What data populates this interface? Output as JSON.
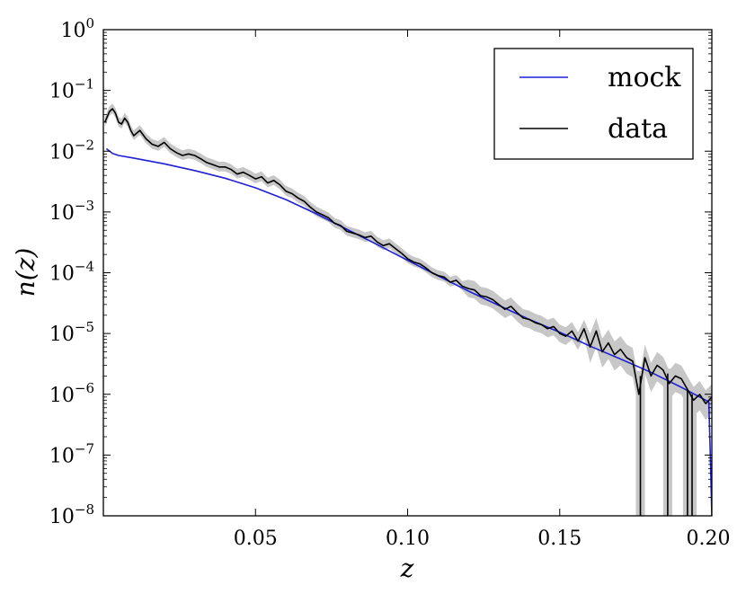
{
  "chart_data": {
    "type": "line",
    "title": "",
    "xlabel": "z",
    "ylabel": "n(z)",
    "xlim": [
      0.0,
      0.2
    ],
    "ylim": [
      1e-08,
      1
    ],
    "yscale": "log",
    "grid": false,
    "legend_position": "top-right",
    "x_ticks": [
      {
        "value": 0.05,
        "label": "0.05"
      },
      {
        "value": 0.1,
        "label": "0.10"
      },
      {
        "value": 0.15,
        "label": "0.15"
      },
      {
        "value": 0.2,
        "label": "0.20"
      }
    ],
    "y_ticks": [
      {
        "exp": 0,
        "base": "10",
        "sup": "0"
      },
      {
        "exp": -1,
        "base": "10",
        "sup": "−1"
      },
      {
        "exp": -2,
        "base": "10",
        "sup": "−2"
      },
      {
        "exp": -3,
        "base": "10",
        "sup": "−3"
      },
      {
        "exp": -4,
        "base": "10",
        "sup": "−4"
      },
      {
        "exp": -5,
        "base": "10",
        "sup": "−5"
      },
      {
        "exp": -6,
        "base": "10",
        "sup": "−6"
      },
      {
        "exp": -7,
        "base": "10",
        "sup": "−7"
      },
      {
        "exp": -8,
        "base": "10",
        "sup": "−8"
      }
    ],
    "series": [
      {
        "name": "mock",
        "color": "#1f1fd6",
        "x": [
          0.001,
          0.003,
          0.005,
          0.01,
          0.02,
          0.03,
          0.04,
          0.05,
          0.06,
          0.07,
          0.08,
          0.09,
          0.1,
          0.11,
          0.12,
          0.13,
          0.14,
          0.15,
          0.16,
          0.17,
          0.18,
          0.19,
          0.199,
          0.1995,
          0.2
        ],
        "y": [
          0.011,
          0.0092,
          0.0085,
          0.0077,
          0.0062,
          0.0048,
          0.0036,
          0.0025,
          0.0016,
          0.00093,
          0.00052,
          0.00029,
          0.00016,
          8.9e-05,
          5e-05,
          2.9e-05,
          1.7e-05,
          1.05e-05,
          6.2e-06,
          3.8e-06,
          2.3e-06,
          1.3e-06,
          7.5e-07,
          1e-07,
          1e-08
        ]
      },
      {
        "name": "data",
        "color": "#000000",
        "band_color": "#c7c7c7",
        "x": [
          0.0005,
          0.002,
          0.003,
          0.004,
          0.005,
          0.006,
          0.007,
          0.008,
          0.009,
          0.01,
          0.012,
          0.014,
          0.016,
          0.018,
          0.02,
          0.022,
          0.024,
          0.026,
          0.028,
          0.03,
          0.032,
          0.034,
          0.036,
          0.038,
          0.04,
          0.042,
          0.044,
          0.046,
          0.048,
          0.05,
          0.052,
          0.054,
          0.056,
          0.058,
          0.06,
          0.062,
          0.064,
          0.066,
          0.068,
          0.07,
          0.072,
          0.074,
          0.076,
          0.078,
          0.08,
          0.082,
          0.084,
          0.086,
          0.088,
          0.09,
          0.092,
          0.094,
          0.096,
          0.098,
          0.1,
          0.102,
          0.104,
          0.106,
          0.108,
          0.11,
          0.112,
          0.114,
          0.116,
          0.118,
          0.12,
          0.122,
          0.124,
          0.126,
          0.128,
          0.13,
          0.132,
          0.134,
          0.136,
          0.138,
          0.14,
          0.142,
          0.144,
          0.146,
          0.148,
          0.15,
          0.152,
          0.154,
          0.156,
          0.158,
          0.16,
          0.162,
          0.164,
          0.166,
          0.168,
          0.17,
          0.172,
          0.174,
          0.176,
          0.178,
          0.18,
          0.182,
          0.184,
          0.186,
          0.188,
          0.19,
          0.192,
          0.194,
          0.196,
          0.198,
          0.2
        ],
        "y": [
          0.03,
          0.045,
          0.05,
          0.042,
          0.03,
          0.028,
          0.035,
          0.03,
          0.022,
          0.018,
          0.022,
          0.016,
          0.013,
          0.012,
          0.014,
          0.011,
          0.0095,
          0.0085,
          0.009,
          0.0085,
          0.0075,
          0.0065,
          0.006,
          0.0055,
          0.0055,
          0.005,
          0.0042,
          0.0045,
          0.004,
          0.0035,
          0.0038,
          0.003,
          0.0033,
          0.0028,
          0.0022,
          0.002,
          0.0017,
          0.0015,
          0.0012,
          0.001,
          0.0009,
          0.0008,
          0.00065,
          0.0006,
          0.00048,
          0.00045,
          0.00042,
          0.00038,
          0.0004,
          0.00032,
          0.00028,
          0.0003,
          0.00025,
          0.00021,
          0.00017,
          0.00015,
          0.00014,
          0.00012,
          0.0001,
          9e-05,
          8.5e-05,
          7e-05,
          7.5e-05,
          6e-05,
          5.5e-05,
          5.2e-05,
          4.2e-05,
          4e-05,
          3.6e-05,
          3e-05,
          2.5e-05,
          2.8e-05,
          2.2e-05,
          1.8e-05,
          1.7e-05,
          1.5e-05,
          1.4e-05,
          1.2e-05,
          1.3e-05,
          1e-05,
          9e-06,
          1.1e-05,
          7.5e-06,
          1.2e-05,
          6e-06,
          1.1e-05,
          5e-06,
          7e-06,
          4.5e-06,
          5.5e-06,
          4e-06,
          3.5e-06,
          1e-06,
          4e-06,
          2e-06,
          3e-06,
          2.5e-06,
          1.5e-06,
          2e-06,
          1.8e-06,
          1.2e-06,
          8e-07,
          1e-06,
          7e-07,
          9e-07
        ],
        "drops": [
          {
            "x": 0.1765,
            "y_top": 2e-06
          },
          {
            "x": 0.1855,
            "y_top": 2.2e-06
          },
          {
            "x": 0.192,
            "y_top": 1.2e-06
          },
          {
            "x": 0.1935,
            "y_top": 1e-06
          }
        ]
      }
    ]
  }
}
